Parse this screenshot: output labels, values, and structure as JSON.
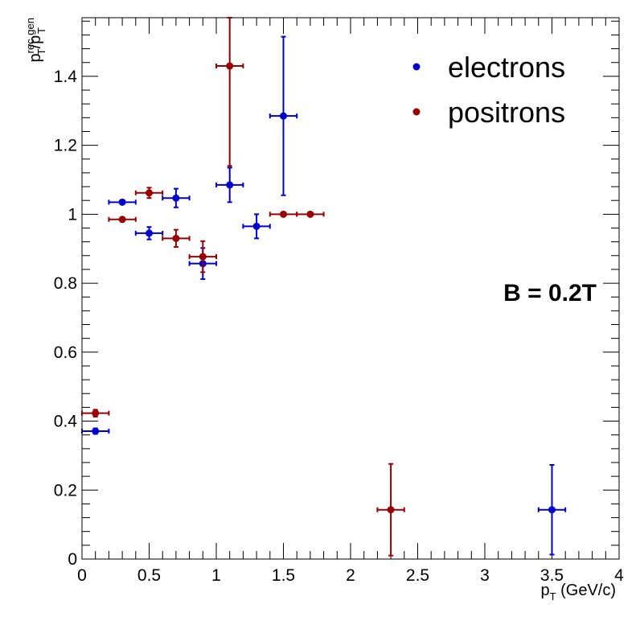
{
  "chart_data": {
    "type": "scatter",
    "xlabel_main": "p",
    "xlabel_sub": "T",
    "xlabel_unit": " (GeV/c)",
    "ylabel": {
      "num_main": "p",
      "num_sup": "rec",
      "num_sub": "T",
      "slash": "/",
      "den_main": "p",
      "den_sup": "gen",
      "den_sub": "T"
    },
    "xlim": [
      0,
      4
    ],
    "ylim": [
      0,
      1.57
    ],
    "x_ticks": [
      0,
      0.5,
      1,
      1.5,
      2,
      2.5,
      3,
      3.5,
      4
    ],
    "x_tick_labels": [
      "0",
      "0.5",
      "1",
      "1.5",
      "2",
      "2.5",
      "3",
      "3.5",
      "4"
    ],
    "y_ticks": [
      0,
      0.2,
      0.4,
      0.6,
      0.8,
      1,
      1.2,
      1.4
    ],
    "y_tick_labels": [
      "0",
      "0.2",
      "0.4",
      "0.6",
      "0.8",
      "1",
      "1.2",
      "1.4"
    ],
    "grid": false,
    "legend_position": "top-right",
    "annotation": "B = 0.2T",
    "series": [
      {
        "name": "electrons",
        "color": "#0000cc",
        "points": [
          {
            "x": 0.1,
            "y": 0.371,
            "xerr": 0.1,
            "yerr": 0.008
          },
          {
            "x": 0.3,
            "y": 1.035,
            "xerr": 0.1,
            "yerr": 0.006
          },
          {
            "x": 0.5,
            "y": 0.945,
            "xerr": 0.1,
            "yerr": 0.018
          },
          {
            "x": 0.7,
            "y": 1.047,
            "xerr": 0.1,
            "yerr": 0.027
          },
          {
            "x": 0.9,
            "y": 0.857,
            "xerr": 0.1,
            "yerr": 0.045
          },
          {
            "x": 1.1,
            "y": 1.085,
            "xerr": 0.1,
            "yerr": 0.05
          },
          {
            "x": 1.3,
            "y": 0.965,
            "xerr": 0.1,
            "yerr": 0.035
          },
          {
            "x": 1.5,
            "y": 1.285,
            "xerr": 0.1,
            "yerr": 0.23
          },
          {
            "x": 3.5,
            "y": 0.143,
            "xerr": 0.1,
            "yerr": 0.13
          }
        ]
      },
      {
        "name": "positrons",
        "color": "#990000",
        "points": [
          {
            "x": 0.1,
            "y": 0.423,
            "xerr": 0.1,
            "yerr": 0.01
          },
          {
            "x": 0.3,
            "y": 0.985,
            "xerr": 0.1,
            "yerr": 0.005
          },
          {
            "x": 0.5,
            "y": 1.062,
            "xerr": 0.1,
            "yerr": 0.015
          },
          {
            "x": 0.7,
            "y": 0.93,
            "xerr": 0.1,
            "yerr": 0.025
          },
          {
            "x": 0.9,
            "y": 0.877,
            "xerr": 0.1,
            "yerr": 0.045
          },
          {
            "x": 1.1,
            "y": 1.43,
            "xerr": 0.1,
            "yerr": 0.29
          },
          {
            "x": 1.5,
            "y": 1.0,
            "xerr": 0.1,
            "yerr": 0.003
          },
          {
            "x": 1.7,
            "y": 1.0,
            "xerr": 0.1,
            "yerr": 0.003
          },
          {
            "x": 2.3,
            "y": 0.143,
            "xerr": 0.1,
            "yerr": 0.133
          }
        ]
      }
    ]
  }
}
